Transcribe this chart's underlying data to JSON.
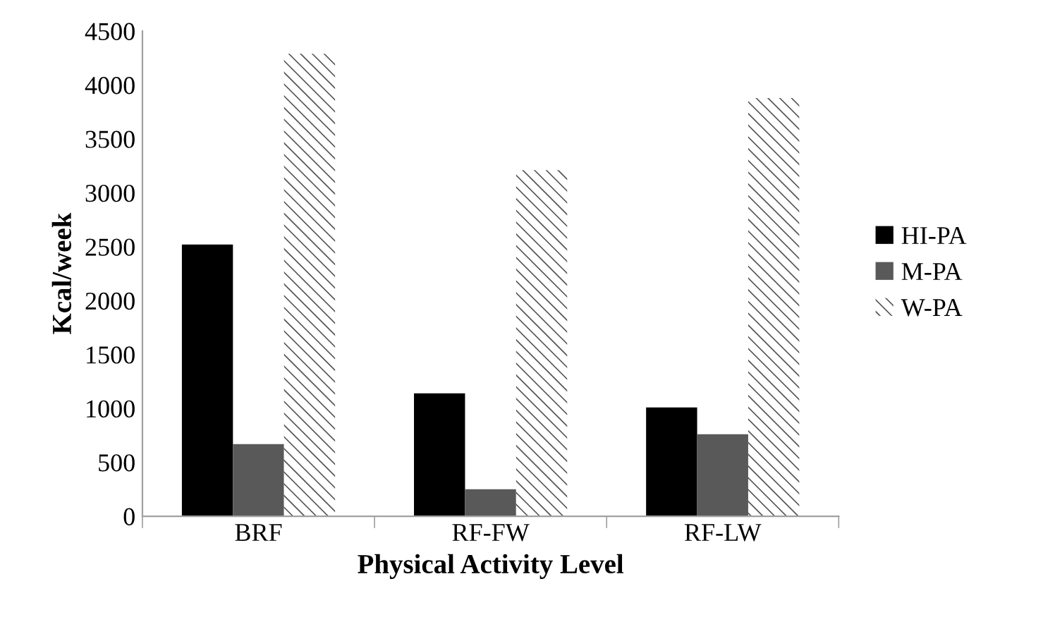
{
  "chart_data": {
    "type": "bar",
    "xlabel": "Physical Activity Level",
    "ylabel": "Kcal/week",
    "categories": [
      "BRF",
      "RF-FW",
      "RF-LW"
    ],
    "series": [
      {
        "name": "HI-PA",
        "color": "#000000",
        "values": [
          2520,
          1140,
          1010
        ]
      },
      {
        "name": "M-PA",
        "color": "#595959",
        "values": [
          670,
          250,
          760
        ]
      },
      {
        "name": "W-PA",
        "color": "#ffffff",
        "values": [
          4290,
          3210,
          3880
        ]
      }
    ],
    "ylim": [
      0,
      4500
    ],
    "yticks": [
      0,
      500,
      1000,
      1500,
      2000,
      2500,
      3000,
      3500,
      4000,
      4500
    ],
    "grid": false,
    "legend": "right"
  }
}
